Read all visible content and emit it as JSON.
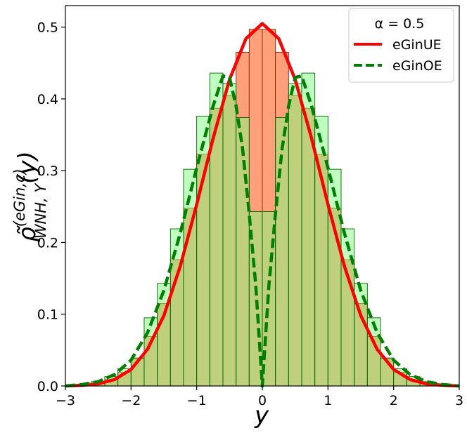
{
  "chart_data": {
    "type": "area",
    "title": "",
    "xlabel": "y",
    "ylabel": "ρ̃",
    "ylabel_sup": "(eGin,c)",
    "ylabel_sub": "WNH, Y",
    "ylabel_arg": "(y)",
    "xlim": [
      -3,
      3
    ],
    "ylim": [
      0,
      0.53
    ],
    "x_ticks": [
      -3,
      -2,
      -1,
      0,
      1,
      2,
      3
    ],
    "x_tick_labels": [
      "−3",
      "−2",
      "−1",
      "0",
      "1",
      "2",
      "3"
    ],
    "y_ticks": [
      0,
      0.1,
      0.2,
      0.3,
      0.4,
      0.5
    ],
    "y_tick_labels": [
      "0.0",
      "0.1",
      "0.2",
      "0.3",
      "0.4",
      "0.5"
    ],
    "grid": false,
    "legend": {
      "title": "α = 0.5",
      "position": "top-right",
      "entries": [
        {
          "label": "eGinUE",
          "color": "#ff0000",
          "style": "solid"
        },
        {
          "label": "eGinOE",
          "color": "#008000",
          "style": "dashed"
        }
      ]
    },
    "histograms": [
      {
        "name": "eGinUE histogram",
        "fill": "#ffa07a",
        "edge": "#8b2500",
        "bin_edges": [
          -3.0,
          -2.8,
          -2.6,
          -2.4,
          -2.2,
          -2.0,
          -1.8,
          -1.6,
          -1.4,
          -1.2,
          -1.0,
          -0.8,
          -0.6,
          -0.4,
          -0.2,
          0.0,
          0.2,
          0.4,
          0.6,
          0.8,
          1.0,
          1.2,
          1.4,
          1.6,
          1.8,
          2.0,
          2.2,
          2.4,
          2.6,
          2.8,
          3.0
        ],
        "values": [
          0.0,
          0.001,
          0.004,
          0.009,
          0.019,
          0.038,
          0.069,
          0.115,
          0.176,
          0.248,
          0.323,
          0.387,
          0.405,
          0.465,
          0.497,
          0.497,
          0.465,
          0.405,
          0.387,
          0.323,
          0.248,
          0.176,
          0.115,
          0.069,
          0.038,
          0.019,
          0.009,
          0.004,
          0.001,
          0.0
        ]
      },
      {
        "name": "eGinOE histogram",
        "fill": "#7fff7f",
        "edge": "#006400",
        "bin_edges": [
          -3.0,
          -2.8,
          -2.6,
          -2.4,
          -2.2,
          -2.0,
          -1.8,
          -1.6,
          -1.4,
          -1.2,
          -1.0,
          -0.8,
          -0.6,
          -0.4,
          -0.2,
          0.0,
          0.2,
          0.4,
          0.6,
          0.8,
          1.0,
          1.2,
          1.4,
          1.6,
          1.8,
          2.0,
          2.2,
          2.4,
          2.6,
          2.8,
          3.0
        ],
        "values": [
          0.001,
          0.002,
          0.006,
          0.013,
          0.024,
          0.039,
          0.095,
          0.143,
          0.219,
          0.302,
          0.376,
          0.436,
          0.421,
          0.374,
          0.243,
          0.243,
          0.374,
          0.421,
          0.436,
          0.376,
          0.302,
          0.219,
          0.143,
          0.095,
          0.039,
          0.024,
          0.013,
          0.006,
          0.002,
          0.001
        ]
      }
    ],
    "curves": [
      {
        "name": "eGinUE",
        "color": "#ff0000",
        "style": "solid",
        "x": [
          -3.0,
          -2.75,
          -2.5,
          -2.25,
          -2.0,
          -1.75,
          -1.5,
          -1.25,
          -1.0,
          -0.75,
          -0.5,
          -0.25,
          0.0,
          0.25,
          0.5,
          0.75,
          1.0,
          1.25,
          1.5,
          1.75,
          2.0,
          2.25,
          2.5,
          2.75,
          3.0
        ],
        "y": [
          0.0,
          0.001,
          0.003,
          0.009,
          0.023,
          0.051,
          0.098,
          0.167,
          0.253,
          0.345,
          0.427,
          0.484,
          0.505,
          0.484,
          0.427,
          0.345,
          0.253,
          0.167,
          0.098,
          0.051,
          0.023,
          0.009,
          0.003,
          0.001,
          0.0
        ]
      },
      {
        "name": "eGinOE",
        "color": "#008000",
        "style": "dashed",
        "x": [
          -3.0,
          -2.75,
          -2.5,
          -2.25,
          -2.0,
          -1.75,
          -1.5,
          -1.25,
          -1.0,
          -0.75,
          -0.6,
          -0.5,
          -0.4,
          -0.3,
          -0.2,
          -0.1,
          0.0,
          0.1,
          0.2,
          0.3,
          0.4,
          0.5,
          0.6,
          0.75,
          1.0,
          1.25,
          1.5,
          1.75,
          2.0,
          2.25,
          2.5,
          2.75,
          3.0
        ],
        "y": [
          0.0,
          0.002,
          0.006,
          0.016,
          0.036,
          0.074,
          0.133,
          0.213,
          0.304,
          0.39,
          0.432,
          0.43,
          0.39,
          0.33,
          0.24,
          0.14,
          0.0,
          0.14,
          0.24,
          0.33,
          0.39,
          0.43,
          0.432,
          0.39,
          0.304,
          0.213,
          0.133,
          0.074,
          0.036,
          0.016,
          0.006,
          0.002,
          0.0
        ]
      }
    ]
  }
}
